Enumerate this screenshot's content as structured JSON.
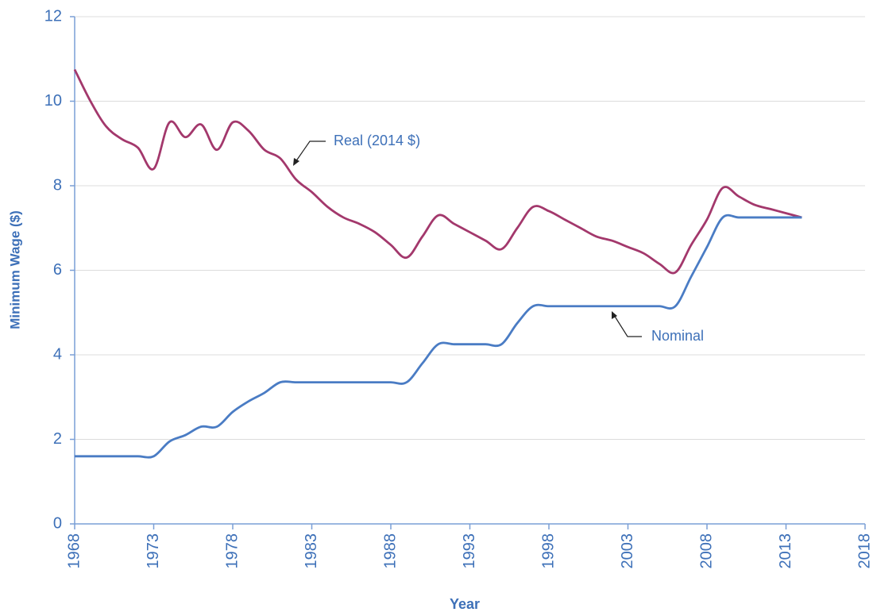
{
  "chart_data": {
    "type": "line",
    "x_label": "Year",
    "y_label": "Minimum Wage ($)",
    "annotations": [
      "Real (2014 $)",
      "Nominal"
    ],
    "x": [
      1968,
      1969,
      1970,
      1971,
      1972,
      1973,
      1974,
      1975,
      1976,
      1977,
      1978,
      1979,
      1980,
      1981,
      1982,
      1983,
      1984,
      1985,
      1986,
      1987,
      1988,
      1989,
      1990,
      1991,
      1992,
      1993,
      1994,
      1995,
      1996,
      1997,
      1998,
      1999,
      2000,
      2001,
      2002,
      2003,
      2004,
      2005,
      2006,
      2007,
      2008,
      2009,
      2010,
      2011,
      2012,
      2013,
      2014
    ],
    "series": [
      {
        "name": "Real (2014 $)",
        "color": "#a3386c",
        "values": [
          10.75,
          10.0,
          9.4,
          9.1,
          8.9,
          8.4,
          9.5,
          9.15,
          9.45,
          8.85,
          9.5,
          9.3,
          8.85,
          8.65,
          8.15,
          7.85,
          7.5,
          7.25,
          7.1,
          6.9,
          6.6,
          6.3,
          6.8,
          7.3,
          7.1,
          6.9,
          6.7,
          6.5,
          7.0,
          7.5,
          7.4,
          7.2,
          7.0,
          6.8,
          6.7,
          6.55,
          6.4,
          6.15,
          5.95,
          6.6,
          7.2,
          7.95,
          7.75,
          7.55,
          7.45,
          7.35,
          7.25
        ]
      },
      {
        "name": "Nominal",
        "color": "#4a7cc4",
        "values": [
          1.6,
          1.6,
          1.6,
          1.6,
          1.6,
          1.6,
          1.95,
          2.1,
          2.3,
          2.3,
          2.65,
          2.9,
          3.1,
          3.35,
          3.35,
          3.35,
          3.35,
          3.35,
          3.35,
          3.35,
          3.35,
          3.35,
          3.8,
          4.25,
          4.25,
          4.25,
          4.25,
          4.25,
          4.75,
          5.15,
          5.15,
          5.15,
          5.15,
          5.15,
          5.15,
          5.15,
          5.15,
          5.15,
          5.15,
          5.85,
          6.55,
          7.25,
          7.25,
          7.25,
          7.25,
          7.25,
          7.25
        ]
      }
    ],
    "xlim": [
      1968,
      2018
    ],
    "xticks": [
      1968,
      1973,
      1978,
      1983,
      1988,
      1993,
      1998,
      2003,
      2008,
      2013,
      2018
    ],
    "ylim": [
      0,
      12
    ],
    "yticks": [
      0,
      2,
      4,
      6,
      8,
      10,
      12
    ],
    "grid": true
  }
}
